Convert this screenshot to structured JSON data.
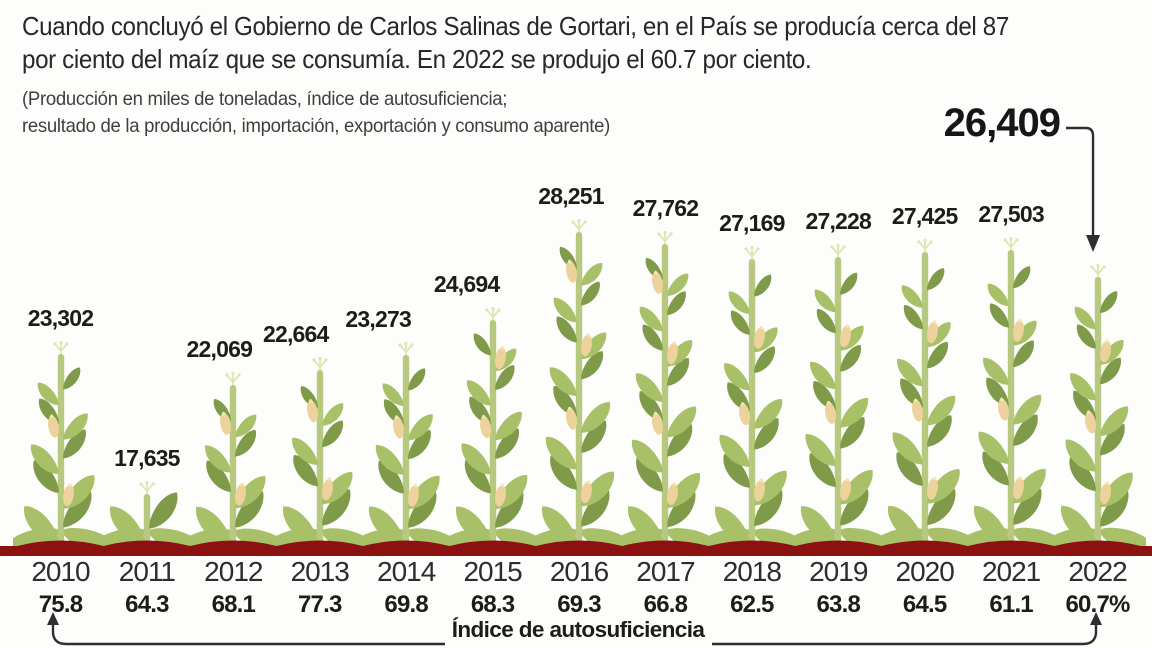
{
  "header": {
    "headline": [
      "Cuando concluyó el Gobierno de Carlos Salinas de Gortari, en el País se producía cerca del 87",
      "por ciento del maíz que se consumía. En 2022 se produjo el 60.7 por ciento."
    ],
    "subtitle": [
      "(Producción en miles de toneladas, índice de autosuficiencia;",
      "resultado de la producción, importación, exportación y consumo aparente)"
    ]
  },
  "chart_data": {
    "type": "bar",
    "title": "",
    "categories": [
      "2010",
      "2011",
      "2012",
      "2013",
      "2014",
      "2015",
      "2016",
      "2017",
      "2018",
      "2019",
      "2020",
      "2021",
      "2022"
    ],
    "series": [
      {
        "name": "Producción en miles de toneladas",
        "values": [
          23302,
          17635,
          22069,
          22664,
          23273,
          24694,
          28251,
          27762,
          27169,
          27228,
          27425,
          27503,
          26409
        ]
      },
      {
        "name": "Índice de autosuficiencia",
        "values": [
          75.8,
          64.3,
          68.1,
          77.3,
          69.8,
          68.3,
          69.3,
          66.8,
          62.5,
          63.8,
          64.5,
          61.1,
          60.7
        ]
      }
    ],
    "value_labels": [
      "23,302",
      "17,635",
      "22,069",
      "22,664",
      "23,273",
      "24,694",
      "28,251",
      "27,762",
      "27,169",
      "27,228",
      "27,425",
      "27,503",
      "26,409"
    ],
    "index_labels": [
      "75.8",
      "64.3",
      "68.1",
      "77.3",
      "69.8",
      "68.3",
      "69.3",
      "66.8",
      "62.5",
      "63.8",
      "64.5",
      "61.1",
      "60.7%"
    ],
    "highlight": {
      "category": "2022",
      "label": "26,409"
    },
    "footer_label": "Índice de autosuficiencia",
    "ylim": [
      0,
      30000
    ],
    "grid": false,
    "legend": "none"
  },
  "colors": {
    "leaf_light": "#a8c169",
    "leaf_dark": "#7f9b49",
    "stem": "#b6c97e",
    "cob": "#edd29b",
    "cob_tip": "#f3e5b6",
    "tassel": "#dfe5b3",
    "ground": "#8b1210",
    "text_dark": "#28282a",
    "text_value": "#1c1c1a",
    "arrow": "#2e2e2e"
  }
}
